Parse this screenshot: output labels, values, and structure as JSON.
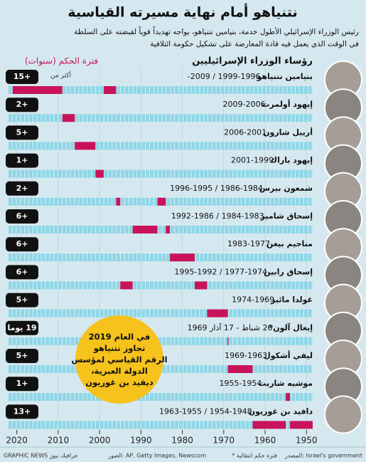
{
  "title": "نتنياهو أمام نهاية مسيرته القياسية",
  "subtitle": [
    "رئيس الوزراء الإسرائيلي الأطول خدمة، بنيامين نتنياهو، يواجه تهديداً قوياً لقبضته على السلطة",
    "في الوقت الذي يعمل فيه قادة المعارضة على تشكيل حكومة ائتلافية"
  ],
  "chart_data": {
    "type": "timeline",
    "legend": "فترة الحكم (سنوات)",
    "header": "رؤساء الوزراء الإسرائيليين",
    "color": "#c8135a",
    "bar_color": "#8fd6e6",
    "xlim": [
      2022,
      1948.5
    ],
    "xticks": [
      2020,
      2010,
      2000,
      1990,
      1980,
      1970,
      1960,
      1950
    ],
    "grid": true,
    "rows": [
      {
        "name": "بنيامين نتنياهو",
        "dates": "1996-1999 / 2009-",
        "badge": "+15",
        "note": "أكثر من",
        "terms": [
          [
            1996,
            1999
          ],
          [
            2009,
            2021
          ]
        ]
      },
      {
        "name": "إيهود أولمرت",
        "dates": "2006-2009",
        "badge": "+2",
        "terms": [
          [
            2006,
            2009
          ]
        ]
      },
      {
        "name": "أرييل شارون",
        "dates": "2001-2006",
        "badge": "+5",
        "terms": [
          [
            2001,
            2006
          ]
        ]
      },
      {
        "name": "إيهود باراك",
        "dates": "1999-2001",
        "badge": "+1",
        "terms": [
          [
            1999,
            2001
          ]
        ]
      },
      {
        "name": "شمعون بيرس",
        "dates": "1984-1986 / 1995-1996",
        "badge": "+2",
        "terms": [
          [
            1984,
            1986
          ],
          [
            1995,
            1996
          ]
        ]
      },
      {
        "name": "إسحاق شامير",
        "dates": "1983-1984 / 1986-1992",
        "badge": "+6",
        "terms": [
          [
            1983,
            1984
          ],
          [
            1986,
            1992
          ]
        ]
      },
      {
        "name": "مناحيم بيغن",
        "dates": "1977-1983",
        "badge": "+6",
        "terms": [
          [
            1977,
            1983
          ]
        ]
      },
      {
        "name": "إسحاق رابين",
        "dates": "1974-1977 / 1992-1995",
        "badge": "+6",
        "terms": [
          [
            1974,
            1977
          ],
          [
            1992,
            1995
          ]
        ]
      },
      {
        "name": "غولدا مائير",
        "dates": "1969-1974",
        "badge": "+5",
        "terms": [
          [
            1969,
            1974
          ]
        ]
      },
      {
        "name": "إيغال آلون*",
        "dates": "26 شباط - 17 آذار 1969",
        "badge": "19 يوما",
        "terms": [
          [
            1969,
            1969.1
          ]
        ]
      },
      {
        "name": "ليفي أشكول",
        "dates": "1963-1969",
        "badge": "+5",
        "terms": [
          [
            1963,
            1969
          ]
        ]
      },
      {
        "name": "موشيه شاريت",
        "dates": "1954-1955",
        "badge": "+1",
        "terms": [
          [
            1954,
            1955
          ]
        ]
      },
      {
        "name": "دافيد بن غوريون",
        "dates": "1948-1954 / 1955-1963",
        "badge": "+13",
        "terms": [
          [
            1948.5,
            1954
          ],
          [
            1955,
            1963
          ]
        ]
      }
    ]
  },
  "callout": [
    "في العام 2019",
    "تجاوز نتنياهو",
    "الرقم القياسي لمؤسس",
    "الدولة العبرية،",
    "ديفيد بن غوريون"
  ],
  "footer": {
    "source": "المصدر: Israel's government",
    "note": "* فترة حكم انتقالية",
    "photos": "الصور: AP, Getty Images, Newscom",
    "credit": "GRAPHIC NEWS جرافيك نيوز"
  }
}
